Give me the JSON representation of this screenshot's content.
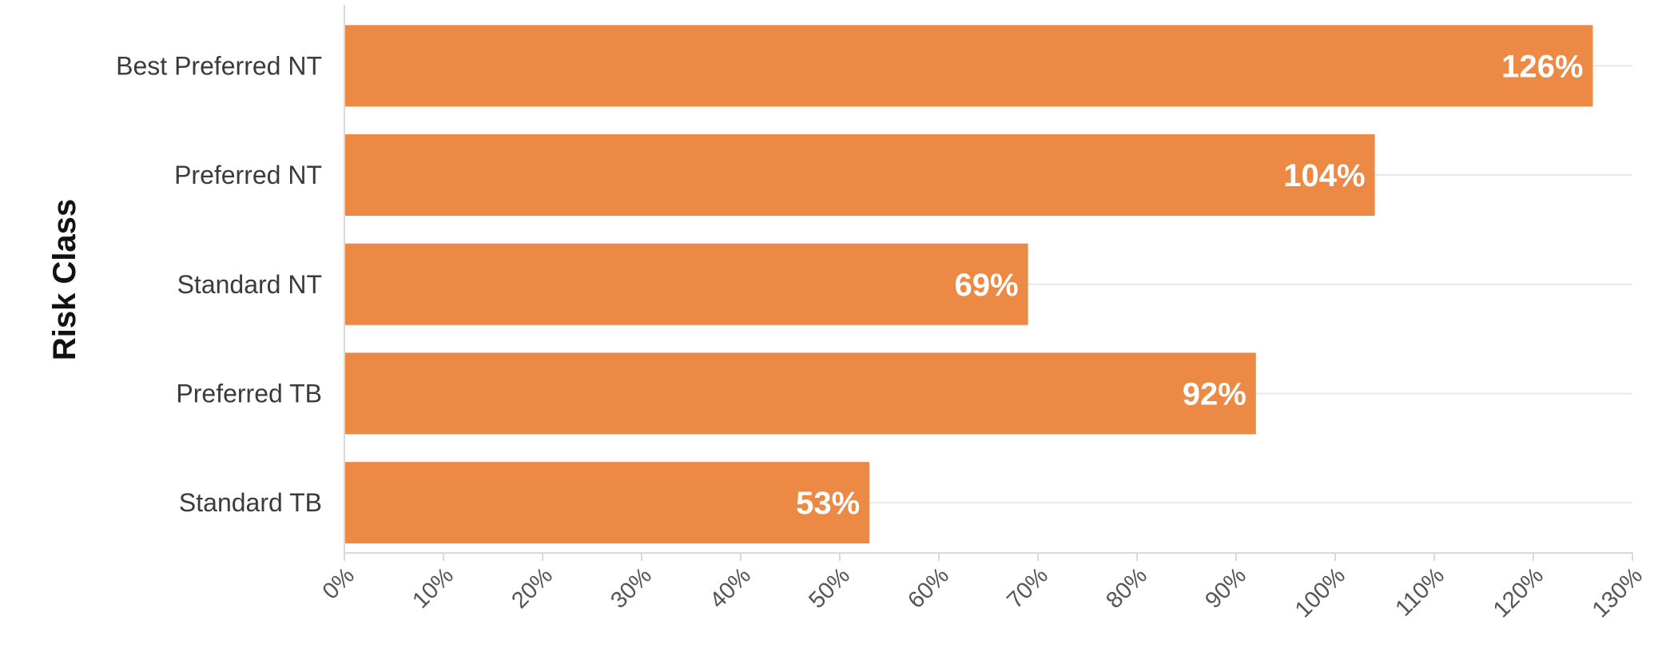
{
  "chart_data": {
    "type": "bar",
    "orientation": "horizontal",
    "title": "",
    "xlabel": "",
    "ylabel": "Risk Class",
    "categories": [
      "Best Preferred NT",
      "Preferred NT",
      "Standard NT",
      "Preferred TB",
      "Standard TB"
    ],
    "values": [
      126,
      104,
      69,
      92,
      53
    ],
    "data_labels": [
      "126%",
      "104%",
      "69%",
      "92%",
      "53%"
    ],
    "xlim": [
      0,
      130
    ],
    "x_ticks": [
      0,
      10,
      20,
      30,
      40,
      50,
      60,
      70,
      80,
      90,
      100,
      110,
      120,
      130
    ],
    "x_tick_labels": [
      "0%",
      "10%",
      "20%",
      "30%",
      "40%",
      "50%",
      "60%",
      "70%",
      "80%",
      "90%",
      "100%",
      "110%",
      "120%",
      "130%"
    ],
    "grid": "horizontal",
    "legend": "none",
    "colors": {
      "bar": "#ec8a45",
      "grid": "#e8e8e8",
      "axis": "#d9d9d9"
    }
  }
}
